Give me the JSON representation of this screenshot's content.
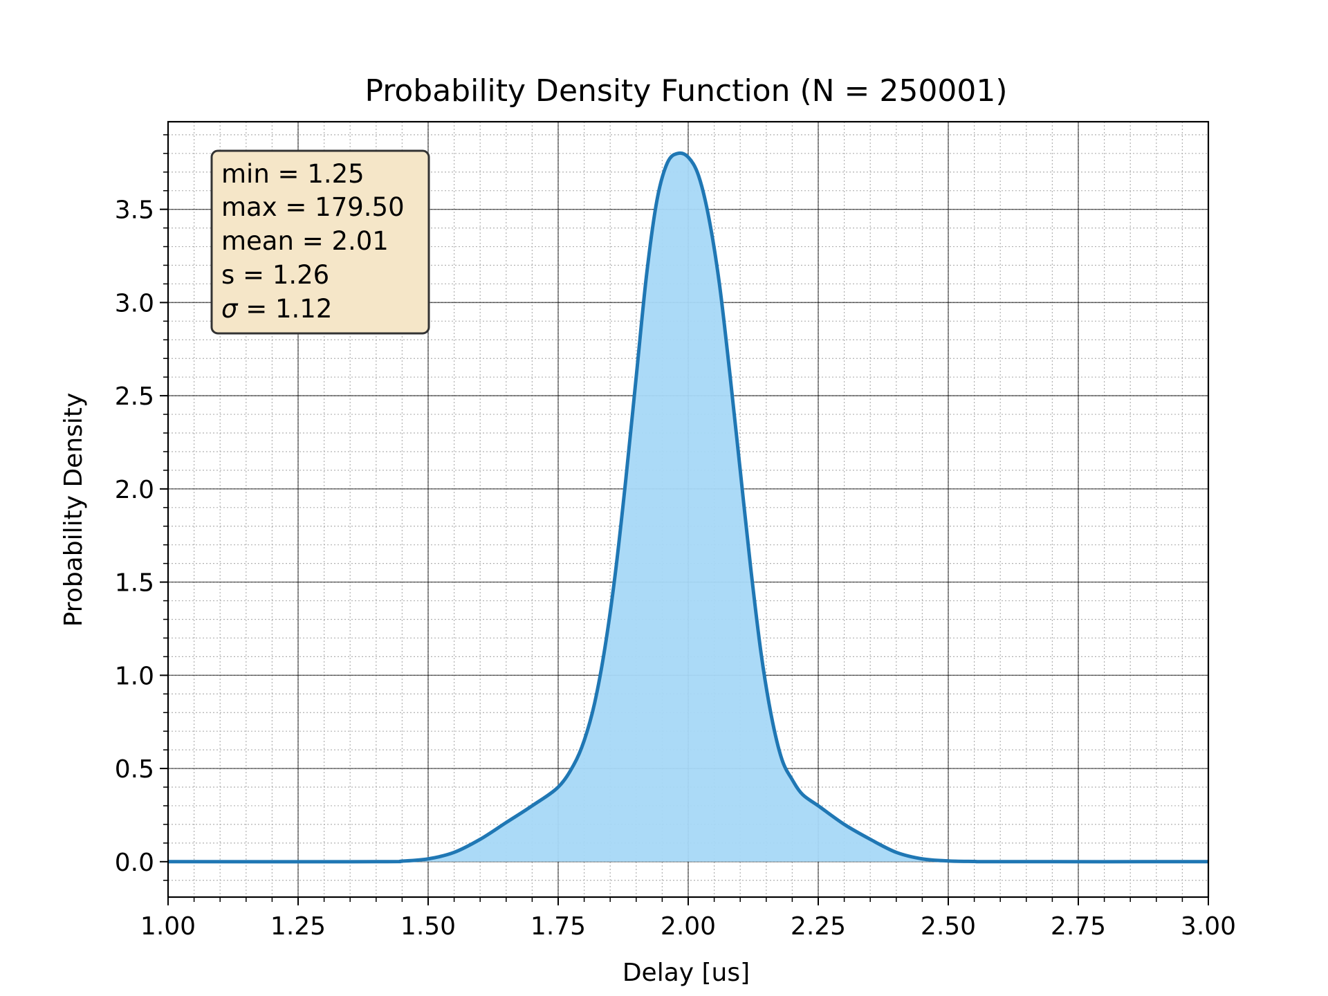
{
  "chart_data": {
    "type": "area",
    "title": "Probability Density Function (N = 250001)",
    "xlabel": "Delay [us]",
    "ylabel": "Probability Density",
    "xlim": [
      1.0,
      3.0
    ],
    "ylim": [
      -0.19,
      3.97
    ],
    "x_ticks": [
      "1.00",
      "1.25",
      "1.50",
      "1.75",
      "2.00",
      "2.25",
      "2.50",
      "2.75",
      "3.00"
    ],
    "y_ticks": [
      "0.0",
      "0.5",
      "1.0",
      "1.5",
      "2.0",
      "2.5",
      "3.0",
      "3.5"
    ],
    "grid": {
      "major": true,
      "minor": true
    },
    "line_color": "#1f77b4",
    "fill_color": "#a6d8f7",
    "stats_box": {
      "placement": "top-left",
      "background": "#f5e6c8",
      "lines": [
        {
          "label": "min",
          "value": "1.25"
        },
        {
          "label": "max",
          "value": "179.50"
        },
        {
          "label": "mean",
          "value": "2.01"
        },
        {
          "label": "s",
          "value": "1.26"
        },
        {
          "label": "σ",
          "value": "1.12"
        }
      ]
    },
    "x": [
      1.0,
      1.4,
      1.45,
      1.5,
      1.55,
      1.6,
      1.65,
      1.7,
      1.75,
      1.78,
      1.8,
      1.82,
      1.84,
      1.86,
      1.88,
      1.9,
      1.92,
      1.94,
      1.96,
      1.98,
      2.0,
      2.02,
      2.04,
      2.06,
      2.08,
      2.1,
      2.12,
      2.14,
      2.16,
      2.18,
      2.2,
      2.22,
      2.25,
      2.3,
      2.35,
      2.4,
      2.45,
      2.5,
      2.55,
      2.6,
      3.0
    ],
    "y": [
      0.0,
      0.0,
      0.003,
      0.015,
      0.05,
      0.12,
      0.21,
      0.3,
      0.4,
      0.52,
      0.65,
      0.85,
      1.15,
      1.55,
      2.05,
      2.6,
      3.15,
      3.55,
      3.75,
      3.8,
      3.78,
      3.68,
      3.45,
      3.1,
      2.62,
      2.1,
      1.58,
      1.12,
      0.78,
      0.55,
      0.44,
      0.36,
      0.3,
      0.2,
      0.12,
      0.05,
      0.015,
      0.004,
      0.001,
      0.0,
      0.0
    ]
  }
}
